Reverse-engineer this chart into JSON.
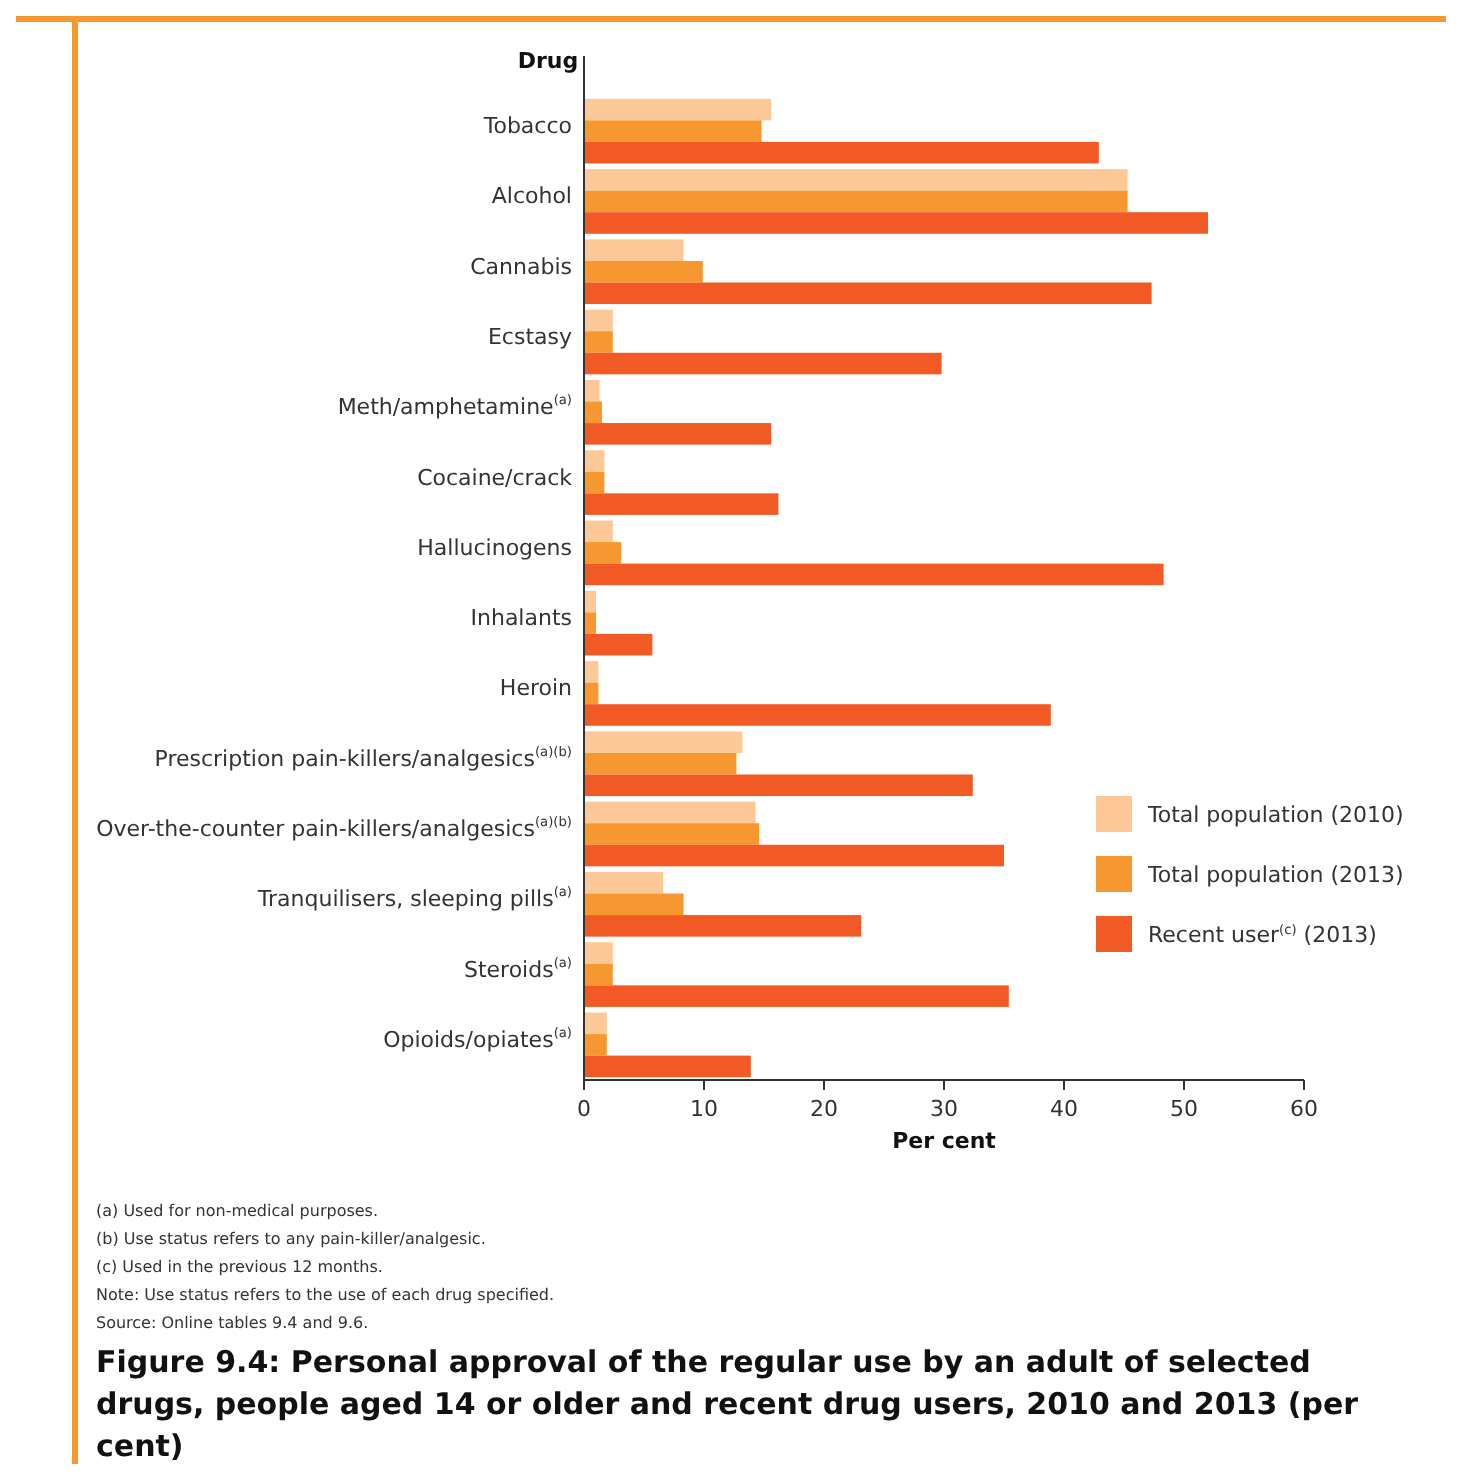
{
  "chart_data": {
    "type": "bar",
    "orientation": "horizontal",
    "title": "Figure 9.4: Personal approval of the regular use by an adult of selected drugs, people aged 14 or older and recent drug users, 2010 and 2013 (per cent)",
    "ylabel": "Drug",
    "xlabel": "Per cent",
    "categories": [
      "Tobacco",
      "Alcohol",
      "Cannabis",
      "Ecstasy",
      "Meth/amphetamine$^{(a)}$",
      "Cocaine/crack",
      "Hallucinogens",
      "Inhalants",
      "Heroin",
      "Prescription pain-killers/analgesics$^{(a)(b)}$",
      "Over-the-counter pain-killers/analgesics$^{(a)(b)}$",
      "Tranquilisers, sleeping pills$^{(a)}$",
      "Steroids$^{(a)}$",
      "Opioids/opiates$^{(a)}$"
    ],
    "series": [
      {
        "name": "Total population (2010)",
        "color": "#fdc897",
        "values": [
          15.6,
          45.3,
          8.3,
          2.4,
          1.3,
          1.7,
          2.4,
          1.0,
          1.2,
          13.2,
          14.3,
          6.6,
          2.4,
          1.9
        ]
      },
      {
        "name": "Total population (2013)",
        "color": "#f7972f",
        "values": [
          14.8,
          45.3,
          9.9,
          2.4,
          1.5,
          1.7,
          3.1,
          1.0,
          1.2,
          12.7,
          14.6,
          8.3,
          2.4,
          1.9
        ]
      },
      {
        "name": "Recent user$^{(c)}$ (2013)",
        "color": "#f15a24",
        "values": [
          42.9,
          52.0,
          47.3,
          29.8,
          15.6,
          16.2,
          48.3,
          5.7,
          38.9,
          32.4,
          35.0,
          23.1,
          35.4,
          13.9
        ]
      }
    ],
    "xlim": [
      0,
      60
    ],
    "xticks": [
      0,
      10,
      20,
      30,
      40,
      50,
      60
    ],
    "grid": false,
    "legend": "right",
    "annotations": [
      "(a) Used for non-medical purposes.",
      "(b) Use status refers to any pain-killer/analgesic.",
      "(c) Used in the previous 12 months.",
      "Note: Use status refers to the use of each drug specified.",
      "Source: Online tables 9.4 and 9.6."
    ]
  }
}
